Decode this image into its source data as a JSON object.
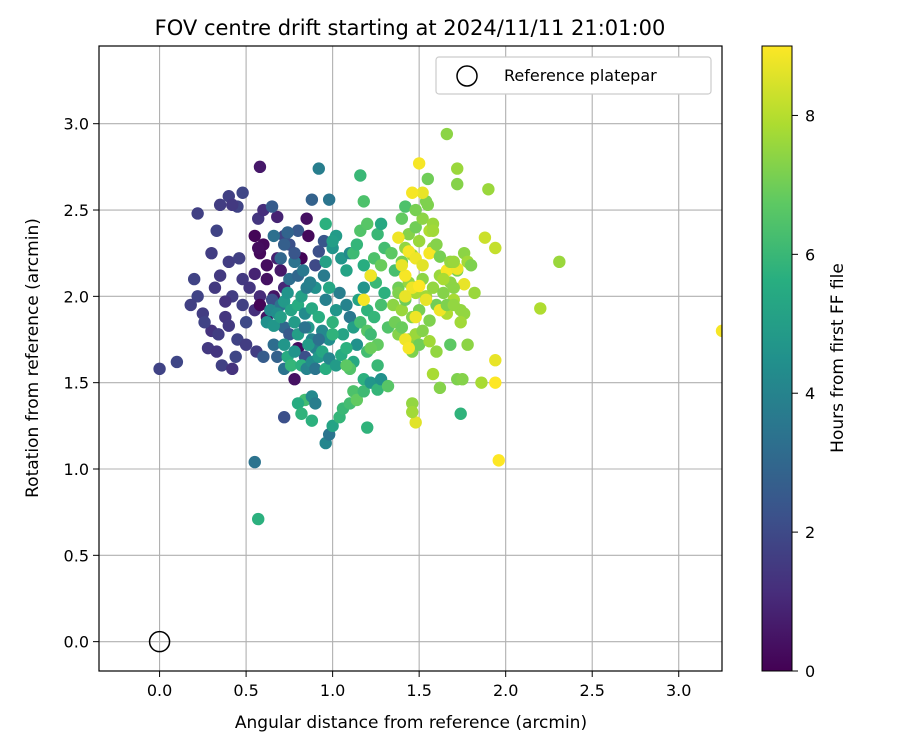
{
  "chart_data": {
    "type": "scatter",
    "title": "FOV centre drift starting at 2024/11/11 21:01:00",
    "xlabel": "Angular distance from reference (arcmin)",
    "ylabel": "Rotation from reference (arcmin)",
    "xlim": [
      -0.35,
      3.25
    ],
    "ylim": [
      -0.17,
      3.45
    ],
    "xticks": [
      0.0,
      0.5,
      1.0,
      1.5,
      2.0,
      2.5,
      3.0
    ],
    "xtick_labels": [
      "0.0",
      "0.5",
      "1.0",
      "1.5",
      "2.0",
      "2.5",
      "3.0"
    ],
    "yticks": [
      0.0,
      0.5,
      1.0,
      1.5,
      2.0,
      2.5,
      3.0
    ],
    "ytick_labels": [
      "0.0",
      "0.5",
      "1.0",
      "1.5",
      "2.0",
      "2.5",
      "3.0"
    ],
    "grid": true,
    "legend": {
      "placement": "top-right",
      "entries": [
        "Reference platepar"
      ]
    },
    "reference_point": {
      "x": 0.0,
      "y": 0.0,
      "marker": "open-circle",
      "label": "Reference platepar"
    },
    "colorbar": {
      "label": "Hours from first FF file",
      "colormap": "viridis",
      "range": [
        0,
        9
      ],
      "ticks": [
        0,
        2,
        4,
        6,
        8
      ],
      "tick_labels": [
        "0",
        "2",
        "4",
        "6",
        "8"
      ]
    },
    "points": [
      [
        0.35,
        2.12,
        1.5
      ],
      [
        0.42,
        2.0,
        1.6
      ],
      [
        0.48,
        1.95,
        1.7
      ],
      [
        0.38,
        1.88,
        1.4
      ],
      [
        0.3,
        1.8,
        1.3
      ],
      [
        0.45,
        1.75,
        1.8
      ],
      [
        0.5,
        1.85,
        2.0
      ],
      [
        0.55,
        1.92,
        1.2
      ],
      [
        0.4,
        2.2,
        1.6
      ],
      [
        0.32,
        2.05,
        1.5
      ],
      [
        0.28,
        1.7,
        1.5
      ],
      [
        0.36,
        1.6,
        1.7
      ],
      [
        0.44,
        1.65,
        1.9
      ],
      [
        0.2,
        2.1,
        1.8
      ],
      [
        0.25,
        1.9,
        1.6
      ],
      [
        0.22,
        2.0,
        1.8
      ],
      [
        0.48,
        2.1,
        1.5
      ],
      [
        0.52,
        2.05,
        1.4
      ],
      [
        0.58,
        2.0,
        1.1
      ],
      [
        0.26,
        1.85,
        1.8
      ],
      [
        0.34,
        1.78,
        1.6
      ],
      [
        0.18,
        1.95,
        1.7
      ],
      [
        0.4,
        1.83,
        1.5
      ],
      [
        0.5,
        1.72,
        1.6
      ],
      [
        0.46,
        2.22,
        1.7
      ],
      [
        0.38,
        1.97,
        1.3
      ],
      [
        0.3,
        2.25,
        1.6
      ],
      [
        0.33,
        1.68,
        1.4
      ],
      [
        0.42,
        1.58,
        1.3
      ],
      [
        0.56,
        1.68,
        1.6
      ],
      [
        0.0,
        1.58,
        1.8
      ],
      [
        0.1,
        1.62,
        1.9
      ],
      [
        0.22,
        2.48,
        1.7
      ],
      [
        0.35,
        2.53,
        1.6
      ],
      [
        0.4,
        2.58,
        1.7
      ],
      [
        0.45,
        2.52,
        1.8
      ],
      [
        0.48,
        2.6,
        1.9
      ],
      [
        0.42,
        2.53,
        1.5
      ],
      [
        0.57,
        2.45,
        1.4
      ],
      [
        0.33,
        2.38,
        1.8
      ],
      [
        0.6,
        2.5,
        1.2
      ],
      [
        0.58,
        2.75,
        0.6
      ],
      [
        0.68,
        2.46,
        0.9
      ],
      [
        0.72,
        2.35,
        1.8
      ],
      [
        0.75,
        2.3,
        2.2
      ],
      [
        0.8,
        2.38,
        2.5
      ],
      [
        0.85,
        2.45,
        0.4
      ],
      [
        0.88,
        2.56,
        2.8
      ],
      [
        0.98,
        2.56,
        3.5
      ],
      [
        0.92,
        2.74,
        3.8
      ],
      [
        0.65,
        2.52,
        2.6
      ],
      [
        0.55,
        2.35,
        0.1
      ],
      [
        0.58,
        2.25,
        0.2
      ],
      [
        0.62,
        2.18,
        0.3
      ],
      [
        0.66,
        2.0,
        0.5
      ],
      [
        0.7,
        2.15,
        0.6
      ],
      [
        0.55,
        2.13,
        0.9
      ],
      [
        0.6,
        2.3,
        0.2
      ],
      [
        0.62,
        2.1,
        0.4
      ],
      [
        0.57,
        2.28,
        0.3
      ],
      [
        0.68,
        2.22,
        0.8
      ],
      [
        0.72,
        2.05,
        1.0
      ],
      [
        0.65,
        1.98,
        2.2
      ],
      [
        0.58,
        1.95,
        0.1
      ],
      [
        0.62,
        1.88,
        0.5
      ],
      [
        0.7,
        1.95,
        3.5
      ],
      [
        0.72,
        1.82,
        3.0
      ],
      [
        0.75,
        1.78,
        2.5
      ],
      [
        0.8,
        1.7,
        0.3
      ],
      [
        0.78,
        1.52,
        0.4
      ],
      [
        0.6,
        1.65,
        2.6
      ],
      [
        0.66,
        1.72,
        3.2
      ],
      [
        0.68,
        1.65,
        2.8
      ],
      [
        0.72,
        1.58,
        3.4
      ],
      [
        0.84,
        1.65,
        2.2
      ],
      [
        0.86,
        2.35,
        0.2
      ],
      [
        0.82,
        2.22,
        0.1
      ],
      [
        0.9,
        2.18,
        2.0
      ],
      [
        0.92,
        2.26,
        2.2
      ],
      [
        0.95,
        2.32,
        2.4
      ],
      [
        0.62,
        1.85,
        4.5
      ],
      [
        0.64,
        1.92,
        4.2
      ],
      [
        0.66,
        1.83,
        4.7
      ],
      [
        0.68,
        1.9,
        4.4
      ],
      [
        0.7,
        1.88,
        5.0
      ],
      [
        0.72,
        1.97,
        4.8
      ],
      [
        0.74,
        2.02,
        4.6
      ],
      [
        0.76,
        1.92,
        5.2
      ],
      [
        0.78,
        1.85,
        4.9
      ],
      [
        0.8,
        1.95,
        5.5
      ],
      [
        0.82,
        2.0,
        5.1
      ],
      [
        0.84,
        1.9,
        4.3
      ],
      [
        0.86,
        1.82,
        4.8
      ],
      [
        0.88,
        1.93,
        5.4
      ],
      [
        0.9,
        2.05,
        4.5
      ],
      [
        0.92,
        1.88,
        5.6
      ],
      [
        0.94,
        1.8,
        4.2
      ],
      [
        0.96,
        1.98,
        3.9
      ],
      [
        0.98,
        1.75,
        4.4
      ],
      [
        1.0,
        1.85,
        5.8
      ],
      [
        1.02,
        1.92,
        4.7
      ],
      [
        1.04,
        2.02,
        3.8
      ],
      [
        1.06,
        1.78,
        5.2
      ],
      [
        1.08,
        1.95,
        4.0
      ],
      [
        1.1,
        1.88,
        3.6
      ],
      [
        1.12,
        1.82,
        5.0
      ],
      [
        1.14,
        1.72,
        4.5
      ],
      [
        0.85,
        2.05,
        3.8
      ],
      [
        0.88,
        1.75,
        4.1
      ],
      [
        0.9,
        1.7,
        3.9
      ],
      [
        0.75,
        2.1,
        3.2
      ],
      [
        0.78,
        2.2,
        3.4
      ],
      [
        0.8,
        2.12,
        3.0
      ],
      [
        0.83,
        2.15,
        3.6
      ],
      [
        0.87,
        2.08,
        3.9
      ],
      [
        0.7,
        2.22,
        3.0
      ],
      [
        0.72,
        2.3,
        2.7
      ],
      [
        0.74,
        2.37,
        2.9
      ],
      [
        0.78,
        2.25,
        2.4
      ],
      [
        0.66,
        2.35,
        3.3
      ],
      [
        0.95,
        2.12,
        3.7
      ],
      [
        0.96,
        2.2,
        5.1
      ],
      [
        0.98,
        2.05,
        5.3
      ],
      [
        1.0,
        2.28,
        4.6
      ],
      [
        1.02,
        2.35,
        4.9
      ],
      [
        1.05,
        2.22,
        4.7
      ],
      [
        1.08,
        2.15,
        5.2
      ],
      [
        1.1,
        2.25,
        4.3
      ],
      [
        0.96,
        2.42,
        5.7
      ],
      [
        1.0,
        2.32,
        5.0
      ],
      [
        0.72,
        1.72,
        4.7
      ],
      [
        0.74,
        1.65,
        5.5
      ],
      [
        0.76,
        1.6,
        5.9
      ],
      [
        0.78,
        1.68,
        4.6
      ],
      [
        0.82,
        1.6,
        5.7
      ],
      [
        0.85,
        1.58,
        4.0
      ],
      [
        0.88,
        1.62,
        4.3
      ],
      [
        0.9,
        1.58,
        3.5
      ],
      [
        0.92,
        1.65,
        4.8
      ],
      [
        0.94,
        1.68,
        5.3
      ],
      [
        0.96,
        1.58,
        5.6
      ],
      [
        0.98,
        1.64,
        4.1
      ],
      [
        1.02,
        1.6,
        4.9
      ],
      [
        1.05,
        1.66,
        5.5
      ],
      [
        1.08,
        1.7,
        5.7
      ],
      [
        0.86,
        1.72,
        4.9
      ],
      [
        0.8,
        1.78,
        5.0
      ],
      [
        0.84,
        1.82,
        3.4
      ],
      [
        1.0,
        1.78,
        5.8
      ],
      [
        0.92,
        1.75,
        3.3
      ],
      [
        1.15,
        1.98,
        5.2
      ],
      [
        1.18,
        2.05,
        4.6
      ],
      [
        1.2,
        1.92,
        5.8
      ],
      [
        1.22,
        2.12,
        5.5
      ],
      [
        1.25,
        2.08,
        6.0
      ],
      [
        1.16,
        1.85,
        6.2
      ],
      [
        1.2,
        1.8,
        6.6
      ],
      [
        1.24,
        1.88,
        5.9
      ],
      [
        1.28,
        1.95,
        6.3
      ],
      [
        1.3,
        2.02,
        5.7
      ],
      [
        1.32,
        1.82,
        6.5
      ],
      [
        1.26,
        1.72,
        6.8
      ],
      [
        1.22,
        1.78,
        6.1
      ],
      [
        1.18,
        2.18,
        5.6
      ],
      [
        1.24,
        2.22,
        6.4
      ],
      [
        1.28,
        2.18,
        6.9
      ],
      [
        1.3,
        2.28,
        6.2
      ],
      [
        1.34,
        2.25,
        6.7
      ],
      [
        1.36,
        2.15,
        6.3
      ],
      [
        1.38,
        2.05,
        7.0
      ],
      [
        1.12,
        2.25,
        6.1
      ],
      [
        1.14,
        2.3,
        5.9
      ],
      [
        1.16,
        2.38,
        6.5
      ],
      [
        1.2,
        2.42,
        6.6
      ],
      [
        1.26,
        2.36,
        6.0
      ],
      [
        1.28,
        2.42,
        5.4
      ],
      [
        1.18,
        2.55,
        6.4
      ],
      [
        1.16,
        2.7,
        6.0
      ],
      [
        1.4,
        2.45,
        6.8
      ],
      [
        1.42,
        2.52,
        6.4
      ],
      [
        0.84,
        1.4,
        6.2
      ],
      [
        0.8,
        1.38,
        5.5
      ],
      [
        0.82,
        1.32,
        5.8
      ],
      [
        0.88,
        1.42,
        4.2
      ],
      [
        0.9,
        1.38,
        3.8
      ],
      [
        0.88,
        1.28,
        5.7
      ],
      [
        0.72,
        1.3,
        2.2
      ],
      [
        0.96,
        1.15,
        4.1
      ],
      [
        0.98,
        1.2,
        3.5
      ],
      [
        1.0,
        1.25,
        5.2
      ],
      [
        1.04,
        1.3,
        5.9
      ],
      [
        1.06,
        1.35,
        6.0
      ],
      [
        1.1,
        1.38,
        6.2
      ],
      [
        1.12,
        1.45,
        6.4
      ],
      [
        1.14,
        1.4,
        6.8
      ],
      [
        1.18,
        1.52,
        5.7
      ],
      [
        1.18,
        1.45,
        6.1
      ],
      [
        1.2,
        1.24,
        5.8
      ],
      [
        1.22,
        1.5,
        4.7
      ],
      [
        1.26,
        1.46,
        5.9
      ],
      [
        1.28,
        1.52,
        4.5
      ],
      [
        1.32,
        1.48,
        6.6
      ],
      [
        1.2,
        1.68,
        6.2
      ],
      [
        1.22,
        1.7,
        6.9
      ],
      [
        1.26,
        1.6,
        6.0
      ],
      [
        1.12,
        1.62,
        5.4
      ],
      [
        1.1,
        1.58,
        6.5
      ],
      [
        1.08,
        1.6,
        6.7
      ],
      [
        0.55,
        1.04,
        3.4
      ],
      [
        0.57,
        0.71,
        5.7
      ],
      [
        1.35,
        1.95,
        7.4
      ],
      [
        1.38,
        2.02,
        7.2
      ],
      [
        1.4,
        1.92,
        7.6
      ],
      [
        1.42,
        1.98,
        7.0
      ],
      [
        1.44,
        2.08,
        7.5
      ],
      [
        1.46,
        1.88,
        7.3
      ],
      [
        1.48,
        2.02,
        7.8
      ],
      [
        1.5,
        1.92,
        7.1
      ],
      [
        1.52,
        2.1,
        7.4
      ],
      [
        1.54,
        2.0,
        7.7
      ],
      [
        1.56,
        1.86,
        7.2
      ],
      [
        1.58,
        2.05,
        7.5
      ],
      [
        1.6,
        1.95,
        7.0
      ],
      [
        1.62,
        2.12,
        7.6
      ],
      [
        1.64,
        2.02,
        7.3
      ],
      [
        1.66,
        1.9,
        7.9
      ],
      [
        1.68,
        2.08,
        7.4
      ],
      [
        1.7,
        1.98,
        7.8
      ],
      [
        1.72,
        2.15,
        7.1
      ],
      [
        1.74,
        1.92,
        7.5
      ],
      [
        1.36,
        1.85,
        7.0
      ],
      [
        1.38,
        1.78,
        7.3
      ],
      [
        1.4,
        1.82,
        6.9
      ],
      [
        1.44,
        1.75,
        7.4
      ],
      [
        1.46,
        1.68,
        7.2
      ],
      [
        1.48,
        1.78,
        7.6
      ],
      [
        1.5,
        1.72,
        7.0
      ],
      [
        1.52,
        1.8,
        7.3
      ],
      [
        1.56,
        1.74,
        7.7
      ],
      [
        1.6,
        1.68,
        7.5
      ],
      [
        1.4,
        2.2,
        7.1
      ],
      [
        1.42,
        2.28,
        7.5
      ],
      [
        1.44,
        2.36,
        7.3
      ],
      [
        1.46,
        2.24,
        7.8
      ],
      [
        1.48,
        2.4,
        7.0
      ],
      [
        1.5,
        2.32,
        7.6
      ],
      [
        1.52,
        2.45,
        7.4
      ],
      [
        1.54,
        2.55,
        7.2
      ],
      [
        1.56,
        2.38,
        7.9
      ],
      [
        1.58,
        2.28,
        7.5
      ],
      [
        1.46,
        2.05,
        8.8
      ],
      [
        1.42,
        2.12,
        8.9
      ],
      [
        1.4,
        2.18,
        8.7
      ],
      [
        1.38,
        2.34,
        8.8
      ],
      [
        1.44,
        2.26,
        8.9
      ],
      [
        1.48,
        2.22,
        8.8
      ],
      [
        1.52,
        2.18,
        8.6
      ],
      [
        1.5,
        2.06,
        9.0
      ],
      [
        1.54,
        1.98,
        8.7
      ],
      [
        1.56,
        2.25,
        8.9
      ],
      [
        1.42,
        1.75,
        8.8
      ],
      [
        1.44,
        1.7,
        8.9
      ],
      [
        1.48,
        1.88,
        8.8
      ],
      [
        1.52,
        2.6,
        8.7
      ],
      [
        1.5,
        2.77,
        8.9
      ],
      [
        1.62,
        1.92,
        8.8
      ],
      [
        1.66,
        2.15,
        8.9
      ],
      [
        1.72,
        2.16,
        8.8
      ],
      [
        1.76,
        2.07,
        8.7
      ],
      [
        1.94,
        1.5,
        9.0
      ],
      [
        1.94,
        1.63,
        8.7
      ],
      [
        1.48,
        1.27,
        8.6
      ],
      [
        1.18,
        1.98,
        8.9
      ],
      [
        1.22,
        2.12,
        8.8
      ],
      [
        1.42,
        2.0,
        8.7
      ],
      [
        1.46,
        2.6,
        8.9
      ],
      [
        1.48,
        2.5,
        7.1
      ],
      [
        1.55,
        2.53,
        7.2
      ],
      [
        1.55,
        2.68,
        7.0
      ],
      [
        1.58,
        2.42,
        7.6
      ],
      [
        1.58,
        2.38,
        7.7
      ],
      [
        1.6,
        2.3,
        7.3
      ],
      [
        1.62,
        2.23,
        7.1
      ],
      [
        1.64,
        2.1,
        7.8
      ],
      [
        1.66,
        1.95,
        7.2
      ],
      [
        1.68,
        2.2,
        7.5
      ],
      [
        1.7,
        2.05,
        7.4
      ],
      [
        1.72,
        1.52,
        7.2
      ],
      [
        1.75,
        1.52,
        7.3
      ],
      [
        1.7,
        2.2,
        7.6
      ],
      [
        1.76,
        2.25,
        7.4
      ],
      [
        1.78,
        2.2,
        7.7
      ],
      [
        1.8,
        2.18,
        7.2
      ],
      [
        1.82,
        2.02,
        7.6
      ],
      [
        1.76,
        1.9,
        7.5
      ],
      [
        1.78,
        1.72,
        7.4
      ],
      [
        1.74,
        1.85,
        7.7
      ],
      [
        1.7,
        1.95,
        7.5
      ],
      [
        1.72,
        2.65,
        7.3
      ],
      [
        1.72,
        2.74,
        7.6
      ],
      [
        1.66,
        2.94,
        7.4
      ],
      [
        1.62,
        1.47,
        7.3
      ],
      [
        1.58,
        1.55,
        7.8
      ],
      [
        1.46,
        1.38,
        7.5
      ],
      [
        1.46,
        1.33,
        7.7
      ],
      [
        1.68,
        1.72,
        6.7
      ],
      [
        1.74,
        1.32,
        5.8
      ],
      [
        1.86,
        1.5,
        7.8
      ],
      [
        1.88,
        2.34,
        8.3
      ],
      [
        1.9,
        2.62,
        7.6
      ],
      [
        1.94,
        2.28,
        8.2
      ],
      [
        2.2,
        1.93,
        7.9
      ],
      [
        2.31,
        2.2,
        7.6
      ],
      [
        3.25,
        1.8,
        8.9
      ],
      [
        1.96,
        1.05,
        9.0
      ]
    ]
  }
}
